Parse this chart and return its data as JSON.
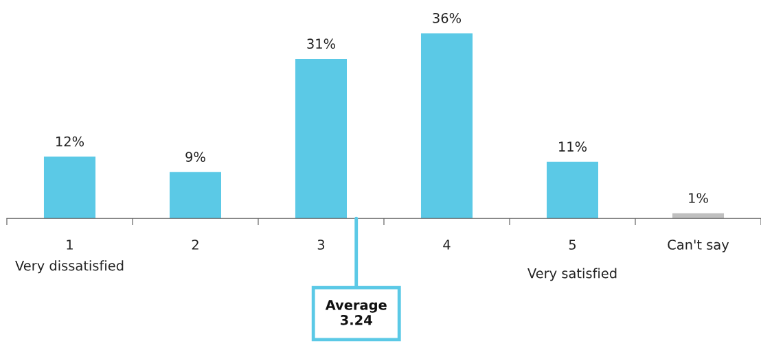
{
  "chart_data": {
    "type": "bar",
    "categories": [
      "1",
      "2",
      "3",
      "4",
      "5",
      "Can't say"
    ],
    "values": [
      12,
      9,
      31,
      36,
      11,
      1
    ],
    "colors": [
      "#5bc9e6",
      "#5bc9e6",
      "#5bc9e6",
      "#5bc9e6",
      "#5bc9e6",
      "#bfbfbf"
    ],
    "value_labels": [
      "12%",
      "9%",
      "31%",
      "36%",
      "11%",
      "1%"
    ],
    "annotations": [
      "Very dissatisfied",
      "Very satisfied",
      "Average\n3.24"
    ],
    "grid": false,
    "legend": false
  }
}
